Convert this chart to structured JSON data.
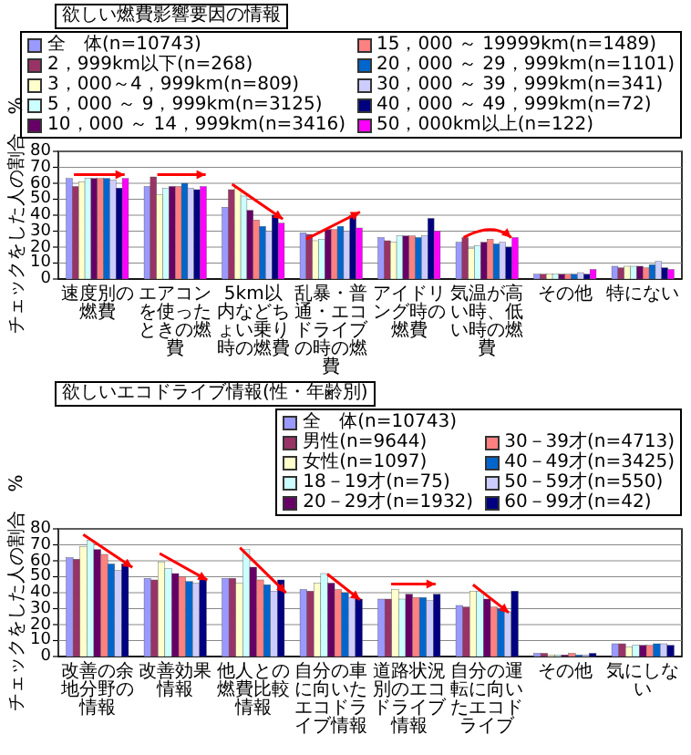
{
  "chart_data": [
    {
      "type": "bar",
      "title": "欲しい燃費影響要因の情報",
      "ylabel": "チェックをした人の割合　%",
      "categories": [
        "速度別の燃費",
        "エアコンを使ったときの燃費",
        "5km以内などちょい乗り時の燃費",
        "乱暴・普通・エコドライブの時の燃費",
        "アイドリング時の燃費",
        "気温が高い時、低い時の燃費",
        "その他",
        "特にない"
      ],
      "series": [
        {
          "name": "全　体(n=10743)",
          "color": "#9999ff",
          "values": [
            63,
            58,
            45,
            29,
            26,
            23,
            3,
            8
          ]
        },
        {
          "name": "2，999km以下(n=268)",
          "color": "#993366",
          "values": [
            58,
            64,
            56,
            28,
            24,
            26,
            3,
            7
          ]
        },
        {
          "name": "3，000～4，999km(n=809)",
          "color": "#ffffcc",
          "values": [
            61,
            53,
            57,
            24,
            23,
            19,
            3,
            8
          ]
        },
        {
          "name": "5，000 ～ 9，999km(n=3125)",
          "color": "#ccffff",
          "values": [
            63,
            57,
            52,
            25,
            27,
            21,
            3,
            8
          ]
        },
        {
          "name": "10，000 ～ 14，999km(n=3416)",
          "color": "#660066",
          "values": [
            63,
            58,
            43,
            31,
            27,
            23,
            3,
            8
          ]
        },
        {
          "name": "15，000 ～ 19999km(n=1489)",
          "color": "#ff8080",
          "values": [
            63,
            58,
            37,
            31,
            27,
            25,
            3,
            7
          ]
        },
        {
          "name": "20，000 ～ 29，999km(n=1101)",
          "color": "#0066cc",
          "values": [
            63,
            60,
            33,
            33,
            26,
            22,
            3,
            9
          ]
        },
        {
          "name": "30，000 ～ 39，999km(n=341)",
          "color": "#ccccff",
          "values": [
            62,
            57,
            30,
            30,
            27,
            23,
            4,
            11
          ]
        },
        {
          "name": "40，000 ～ 49，999km(n=72)",
          "color": "#000080",
          "values": [
            57,
            56,
            40,
            40,
            38,
            20,
            3,
            7
          ]
        },
        {
          "name": "50，000km以上(n=122)",
          "color": "#ff00ff",
          "values": [
            63,
            58,
            35,
            32,
            30,
            26,
            6,
            6
          ]
        }
      ],
      "ylim": [
        0,
        80
      ],
      "yticks": [
        0,
        10,
        20,
        30,
        40,
        50,
        60,
        70,
        80
      ],
      "grid": "y",
      "legend": "top right"
    },
    {
      "type": "bar",
      "title": "欲しいエコドライブ情報(性・年齢別)",
      "ylabel": "チェックをした人の割合　%",
      "categories": [
        "改善の余地分野の情報",
        "改善効果情報",
        "他人との燃費比較情報",
        "自分の車に向いたエコドライブ情報",
        "道路状況別のエコドライブ情報",
        "自分の運転に向いたエコドライブ",
        "その他",
        "気にしない"
      ],
      "series": [
        {
          "name": "全　体(n=10743)",
          "color": "#9999ff",
          "values": [
            62,
            49,
            49,
            42,
            36,
            32,
            2,
            8
          ]
        },
        {
          "name": "男性(n=9644)",
          "color": "#993366",
          "values": [
            61,
            48,
            49,
            41,
            36,
            31,
            2,
            8
          ]
        },
        {
          "name": "女性(n=1097)",
          "color": "#ffffcc",
          "values": [
            69,
            59,
            46,
            46,
            42,
            41,
            1,
            6
          ]
        },
        {
          "name": "18－19才(n=75)",
          "color": "#ccffff",
          "values": [
            73,
            55,
            67,
            52,
            36,
            41,
            1,
            7
          ]
        },
        {
          "name": "20－29才(n=1932)",
          "color": "#660066",
          "values": [
            67,
            52,
            56,
            46,
            39,
            36,
            1,
            7
          ]
        },
        {
          "name": "30－39才(n=4713)",
          "color": "#ff8080",
          "values": [
            64,
            50,
            48,
            42,
            37,
            31,
            2,
            7
          ]
        },
        {
          "name": "40－49才(n=3425)",
          "color": "#0066cc",
          "values": [
            58,
            47,
            45,
            40,
            37,
            30,
            1,
            8
          ]
        },
        {
          "name": "50－59才(n=550)",
          "color": "#ccccff",
          "values": [
            54,
            46,
            41,
            37,
            35,
            28,
            1,
            8
          ]
        },
        {
          "name": "60－99才(n=42)",
          "color": "#000080",
          "values": [
            58,
            48,
            48,
            36,
            39,
            41,
            2,
            7
          ]
        }
      ],
      "ylim": [
        0,
        80
      ],
      "yticks": [
        0,
        10,
        20,
        30,
        40,
        50,
        60,
        70,
        80
      ],
      "grid": "y",
      "legend": "top right"
    }
  ]
}
